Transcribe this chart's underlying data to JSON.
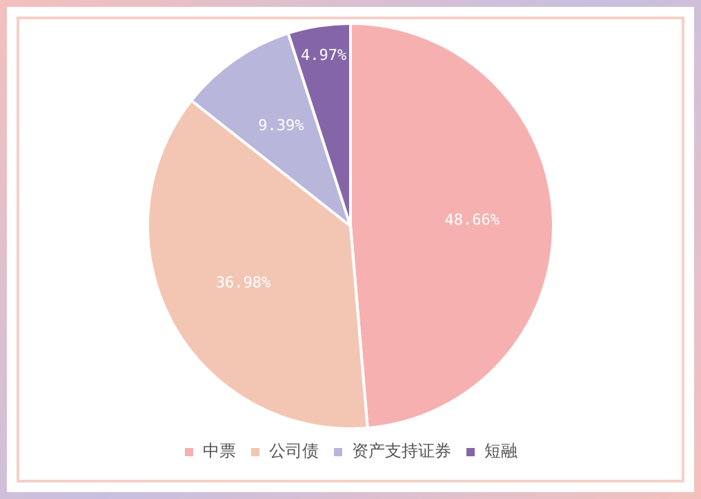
{
  "chart_data": {
    "type": "pie",
    "categories": [
      "中票",
      "公司债",
      "资产支持证券",
      "短融"
    ],
    "values": [
      48.66,
      36.98,
      9.39,
      4.97
    ],
    "colors": [
      "#f7b0b0",
      "#f3c6b4",
      "#b9b6dc",
      "#8466a8"
    ],
    "value_labels": [
      "48.66%",
      "36.98%",
      "9.39%",
      "4.97%"
    ],
    "legend": "bottom"
  }
}
